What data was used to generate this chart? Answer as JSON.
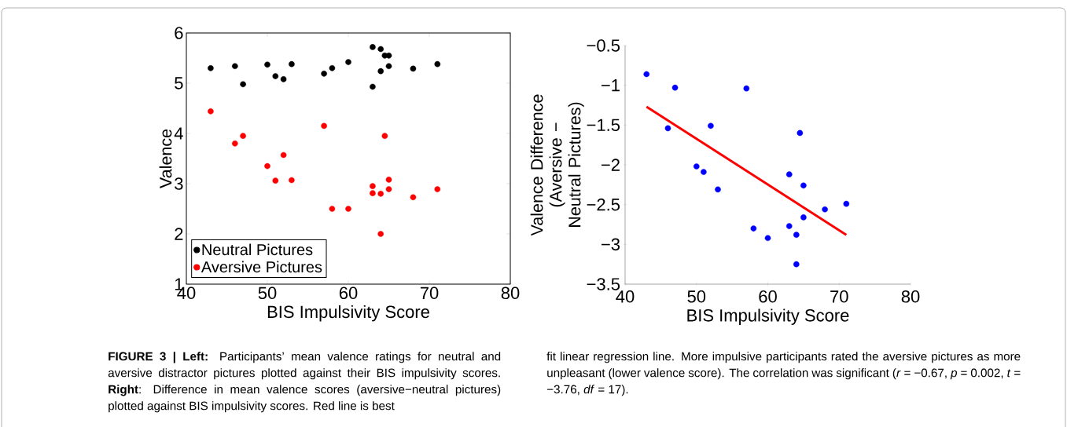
{
  "chart_data": [
    {
      "type": "scatter",
      "xlabel": "BIS Impulsivity Score",
      "ylabel": "Valence",
      "marker": "circle",
      "legend": "bottom left",
      "grid": false,
      "xlim": [
        40,
        80
      ],
      "ylim": [
        1,
        6
      ],
      "xticks": [
        40,
        50,
        60,
        70,
        80
      ],
      "yticks": [
        1,
        2,
        3,
        4,
        5,
        6
      ],
      "x": [
        43,
        46,
        47,
        50,
        51,
        52,
        53,
        57,
        58,
        60,
        63,
        63,
        64,
        64,
        64.5,
        65,
        65,
        68,
        71
      ],
      "series": [
        {
          "name": "Neutral Pictures",
          "color": "#000000",
          "values": [
            5.3,
            5.34,
            4.98,
            5.37,
            5.14,
            5.08,
            5.38,
            5.19,
            5.3,
            5.42,
            5.72,
            4.93,
            5.68,
            5.24,
            5.55,
            5.55,
            5.34,
            5.29,
            5.38
          ]
        },
        {
          "name": "Aversive Pictures",
          "color": "#ff0000",
          "values": [
            4.44,
            3.8,
            3.95,
            3.35,
            3.06,
            3.57,
            3.07,
            4.15,
            2.5,
            2.5,
            2.95,
            2.81,
            2.8,
            2.0,
            3.95,
            3.08,
            2.89,
            2.73,
            2.89
          ]
        }
      ],
      "annotations": [
        "**FIGURE 3 | Left:** Participants’ mean valence ratings for neutral and aversive distractor pictures plotted against their BIS impulsivity scores. **Right**: Difference in mean valence scores (aversive−neutral pictures) plotted against BIS impulsivity scores. Red line is best",
        "fit linear regression line. More impulsive participants rated the aversive pictures as more unpleasant (lower valence score). The correlation was significant (*r* = −0.67, *p* = 0.002, *t* = −3.76, *df* = 17)."
      ]
    },
    {
      "type": "scatter",
      "xlabel": "BIS Impulsivity Score",
      "ylabel": "Valence Difference (Aversive − Neutral Pictures)",
      "marker": "circle",
      "grid": false,
      "xlim": [
        40,
        80
      ],
      "ylim": [
        -3.5,
        -0.5
      ],
      "xticks": [
        40,
        50,
        60,
        70,
        80
      ],
      "yticks": [
        {
          "value": -3.5,
          "label": "−3.5"
        },
        {
          "value": -3,
          "label": "−3"
        },
        {
          "value": -2.5,
          "label": "−2.5"
        },
        {
          "value": -2,
          "label": "−2"
        },
        {
          "value": -1.5,
          "label": "−1.5"
        },
        {
          "value": -1,
          "label": "−1"
        },
        {
          "value": -0.5,
          "label": "−0.5"
        }
      ],
      "x": [
        43,
        46,
        47,
        50,
        51,
        52,
        53,
        57,
        58,
        60,
        63,
        63,
        64,
        64,
        64.5,
        65,
        65,
        68,
        71
      ],
      "series": [
        {
          "color": "#0000ff",
          "values": [
            -0.86,
            -1.54,
            -1.03,
            -2.02,
            -2.09,
            -1.51,
            -2.31,
            -1.04,
            -2.8,
            -2.92,
            -2.12,
            -2.77,
            -2.88,
            -3.25,
            -1.6,
            -2.26,
            -2.66,
            -2.56,
            -2.49
          ]
        },
        {
          "type": "line",
          "marker": "none",
          "color": "#ff0000",
          "x": [
            43,
            71
          ],
          "values": [
            -1.27,
            -2.88
          ]
        }
      ]
    }
  ]
}
